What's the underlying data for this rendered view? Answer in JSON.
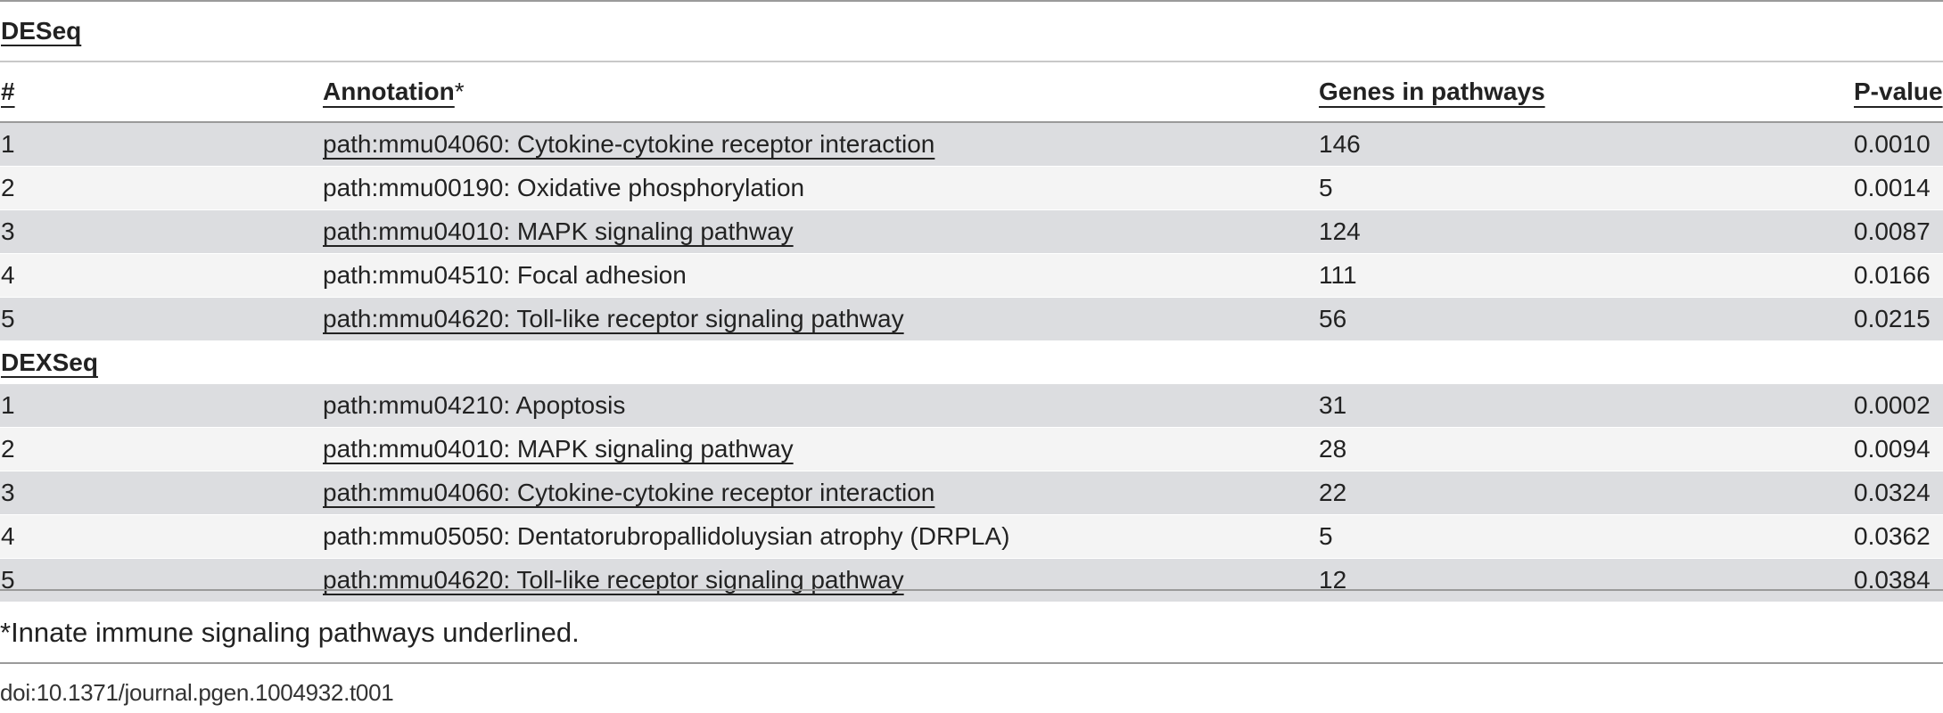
{
  "sections": [
    {
      "title": "DESeq",
      "rows": [
        {
          "num": "1",
          "annotation": "path:mmu04060: Cytokine-cytokine receptor interaction",
          "underlined": true,
          "genes": "146",
          "pvalue": "0.0010"
        },
        {
          "num": "2",
          "annotation": "path:mmu00190: Oxidative phosphorylation",
          "underlined": false,
          "genes": "5",
          "pvalue": "0.0014"
        },
        {
          "num": "3",
          "annotation": "path:mmu04010: MAPK signaling pathway",
          "underlined": true,
          "genes": "124",
          "pvalue": "0.0087"
        },
        {
          "num": "4",
          "annotation": "path:mmu04510: Focal adhesion",
          "underlined": false,
          "genes": "111",
          "pvalue": "0.0166"
        },
        {
          "num": "5",
          "annotation": "path:mmu04620: Toll-like receptor signaling pathway",
          "underlined": true,
          "genes": "56",
          "pvalue": "0.0215"
        }
      ]
    },
    {
      "title": "DEXSeq",
      "rows": [
        {
          "num": "1",
          "annotation": "path:mmu04210: Apoptosis",
          "underlined": false,
          "genes": "31",
          "pvalue": "0.0002"
        },
        {
          "num": "2",
          "annotation": "path:mmu04010: MAPK signaling pathway",
          "underlined": true,
          "genes": "28",
          "pvalue": "0.0094"
        },
        {
          "num": "3",
          "annotation": "path:mmu04060: Cytokine-cytokine receptor interaction",
          "underlined": true,
          "genes": "22",
          "pvalue": "0.0324"
        },
        {
          "num": "4",
          "annotation": "path:mmu05050: Dentatorubropallidoluysian atrophy (DRPLA)",
          "underlined": false,
          "genes": "5",
          "pvalue": "0.0362"
        },
        {
          "num": "5",
          "annotation": "path:mmu04620: Toll-like receptor signaling pathway",
          "underlined": true,
          "genes": "12",
          "pvalue": "0.0384"
        }
      ]
    }
  ],
  "headers": {
    "num": "#",
    "annotation": "Annotation",
    "annotation_mark": "*",
    "genes": "Genes in pathways",
    "pvalue": "P-value"
  },
  "footnote": "*Innate immune signaling pathways underlined.",
  "doi": "doi:10.1371/journal.pgen.1004932.t001"
}
